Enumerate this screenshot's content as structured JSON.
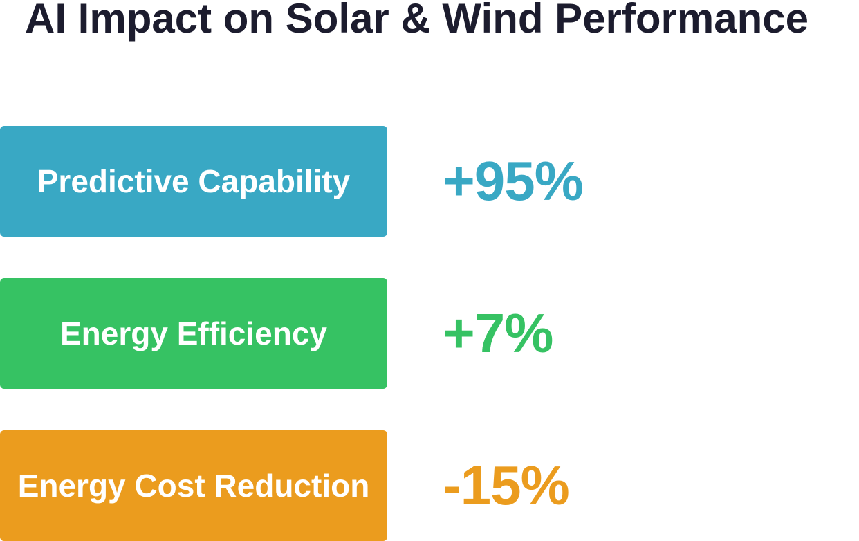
{
  "title": "AI Impact on Solar & Wind Performance",
  "metrics": [
    {
      "label": "Predictive Capability",
      "value": "+95%",
      "color": "#39a8c4"
    },
    {
      "label": "Energy Efficiency",
      "value": "+7%",
      "color": "#36c263"
    },
    {
      "label": "Energy Cost Reduction",
      "value": "-15%",
      "color": "#eb9c1e"
    }
  ]
}
